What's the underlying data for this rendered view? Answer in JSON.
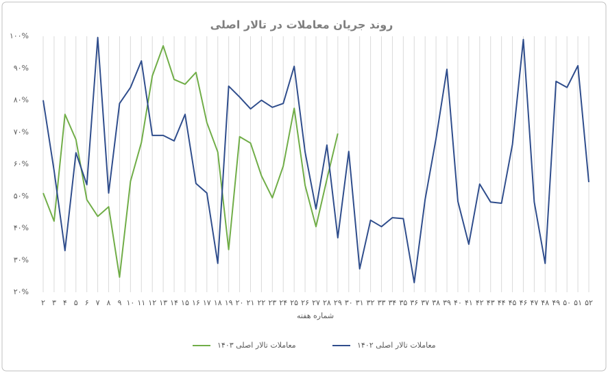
{
  "chart_data": {
    "type": "line",
    "title": "روند جریان معاملات در تالار اصلی",
    "x_label": "شماره هفته",
    "categories": [
      "۲",
      "۳",
      "۴",
      "۵",
      "۶",
      "۷",
      "۸",
      "۹",
      "۱۰",
      "۱۱",
      "۱۲",
      "۱۳",
      "۱۴",
      "۱۵",
      "۱۶",
      "۱۷",
      "۱۸",
      "۱۹",
      "۲۰",
      "۲۱",
      "۲۲",
      "۲۳",
      "۲۴",
      "۲۵",
      "۲۶",
      "۲۷",
      "۲۸",
      "۲۹",
      "۳۰",
      "۳۱",
      "۳۲",
      "۳۳",
      "۳۴",
      "۳۵",
      "۳۶",
      "۳۷",
      "۳۸",
      "۳۹",
      "۴۰",
      "۴۱",
      "۴۲",
      "۴۳",
      "۴۴",
      "۴۵",
      "۴۶",
      "۴۷",
      "۴۸",
      "۴۹",
      "۵۰",
      "۵۱",
      "۵۲"
    ],
    "series": [
      {
        "name": "معاملات تالار اصلی ۱۴۰۳",
        "color": "#70ad47",
        "values": [
          51,
          42.2,
          75.6,
          67.7,
          48.9,
          43.7,
          46.7,
          24.7,
          54.7,
          66.8,
          87.6,
          97,
          86.5,
          85,
          88.7,
          73,
          63.8,
          33.3,
          68.6,
          66.6,
          56.4,
          49.5,
          59.4,
          77.5,
          53.4,
          40.5,
          55.3,
          69.6,
          null,
          null,
          null,
          null,
          null,
          null,
          null,
          null,
          null,
          null,
          null,
          null,
          null,
          null,
          null,
          null,
          null,
          null,
          null,
          null,
          null,
          null,
          null
        ]
      },
      {
        "name": "معاملات تالار اصلی ۱۴۰۲",
        "color": "#2f4d8c",
        "values": [
          80,
          58,
          33,
          63.6,
          53.6,
          99.6,
          51,
          79,
          84,
          92.3,
          69,
          69,
          67.3,
          75.6,
          54,
          51,
          29,
          84.4,
          81,
          77.3,
          80,
          77.8,
          79,
          90.6,
          63.8,
          46,
          66,
          37,
          64,
          27.3,
          42.5,
          40.5,
          43.3,
          43,
          23,
          49,
          68,
          89.7,
          48.4,
          35,
          53.8,
          48.2,
          47.8,
          66.2,
          99,
          48.2,
          29,
          85.9,
          84,
          90.8,
          54.4
        ]
      }
    ],
    "ylim": [
      20,
      100
    ],
    "yticks": [
      {
        "value": 20,
        "label": "۲۰%"
      },
      {
        "value": 30,
        "label": "۳۰%"
      },
      {
        "value": 40,
        "label": "۴۰%"
      },
      {
        "value": 50,
        "label": "۵۰%"
      },
      {
        "value": 60,
        "label": "۶۰%"
      },
      {
        "value": 70,
        "label": "۷۰%"
      },
      {
        "value": 80,
        "label": "۸۰%"
      },
      {
        "value": 90,
        "label": "۹۰%"
      },
      {
        "value": 100,
        "label": "۱۰۰%"
      }
    ],
    "grid": "x",
    "legend": "bottom"
  }
}
